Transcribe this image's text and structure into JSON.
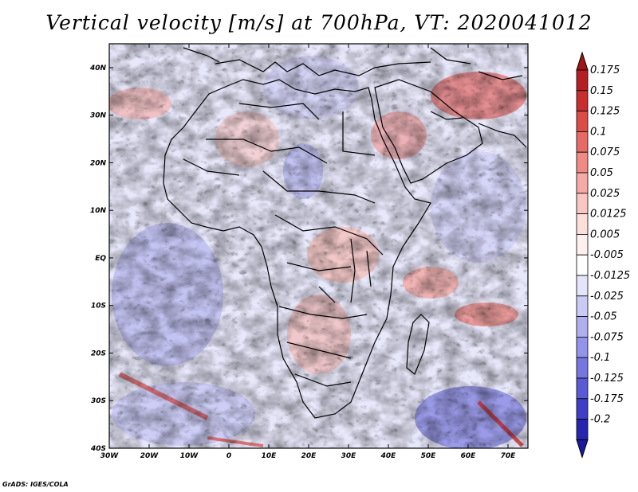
{
  "title": "Vertical velocity [m/s] at 700hPa, VT: 2020041012",
  "credit": "GrADS: IGES/COLA",
  "map": {
    "lon_range": [
      -30,
      75
    ],
    "lat_range": [
      -40,
      45
    ],
    "x_ticks": [
      {
        "value": -30,
        "label": "30W"
      },
      {
        "value": -20,
        "label": "20W"
      },
      {
        "value": -10,
        "label": "10W"
      },
      {
        "value": 0,
        "label": "0"
      },
      {
        "value": 10,
        "label": "10E"
      },
      {
        "value": 20,
        "label": "20E"
      },
      {
        "value": 30,
        "label": "30E"
      },
      {
        "value": 40,
        "label": "40E"
      },
      {
        "value": 50,
        "label": "50E"
      },
      {
        "value": 60,
        "label": "60E"
      },
      {
        "value": 70,
        "label": "70E"
      }
    ],
    "y_ticks": [
      {
        "value": 40,
        "label": "40N"
      },
      {
        "value": 30,
        "label": "30N"
      },
      {
        "value": 20,
        "label": "20N"
      },
      {
        "value": 10,
        "label": "10N"
      },
      {
        "value": 0,
        "label": "EQ"
      },
      {
        "value": -10,
        "label": "10S"
      },
      {
        "value": -20,
        "label": "20S"
      },
      {
        "value": -30,
        "label": "30S"
      },
      {
        "value": -40,
        "label": "40S"
      }
    ]
  },
  "colorbar": {
    "levels": [
      {
        "label": "0.175",
        "color": "#b51e23"
      },
      {
        "label": "0.15",
        "color": "#c92d2f"
      },
      {
        "label": "0.125",
        "color": "#dc4b48"
      },
      {
        "label": "0.1",
        "color": "#e86a66"
      },
      {
        "label": "0.075",
        "color": "#ef8a85"
      },
      {
        "label": "0.05",
        "color": "#f5aaa5"
      },
      {
        "label": "0.025",
        "color": "#f9c6c2"
      },
      {
        "label": "0.0125",
        "color": "#fcdedb"
      },
      {
        "label": "0.005",
        "color": "#fdf0ee"
      },
      {
        "label": "-0.005",
        "color": "#ffffff"
      },
      {
        "label": "-0.0125",
        "color": "#e4e4fb"
      },
      {
        "label": "-0.025",
        "color": "#cacaf5"
      },
      {
        "label": "-0.05",
        "color": "#afaff0"
      },
      {
        "label": "-0.075",
        "color": "#9393ea"
      },
      {
        "label": "-0.1",
        "color": "#7676e2"
      },
      {
        "label": "-0.125",
        "color": "#5a5ad6"
      },
      {
        "label": "-0.175",
        "color": "#3e3ec8"
      },
      {
        "label": "-0.2",
        "color": "#2525b0"
      }
    ],
    "top_color": "#a01515",
    "bottom_color": "#1a1aa0"
  }
}
